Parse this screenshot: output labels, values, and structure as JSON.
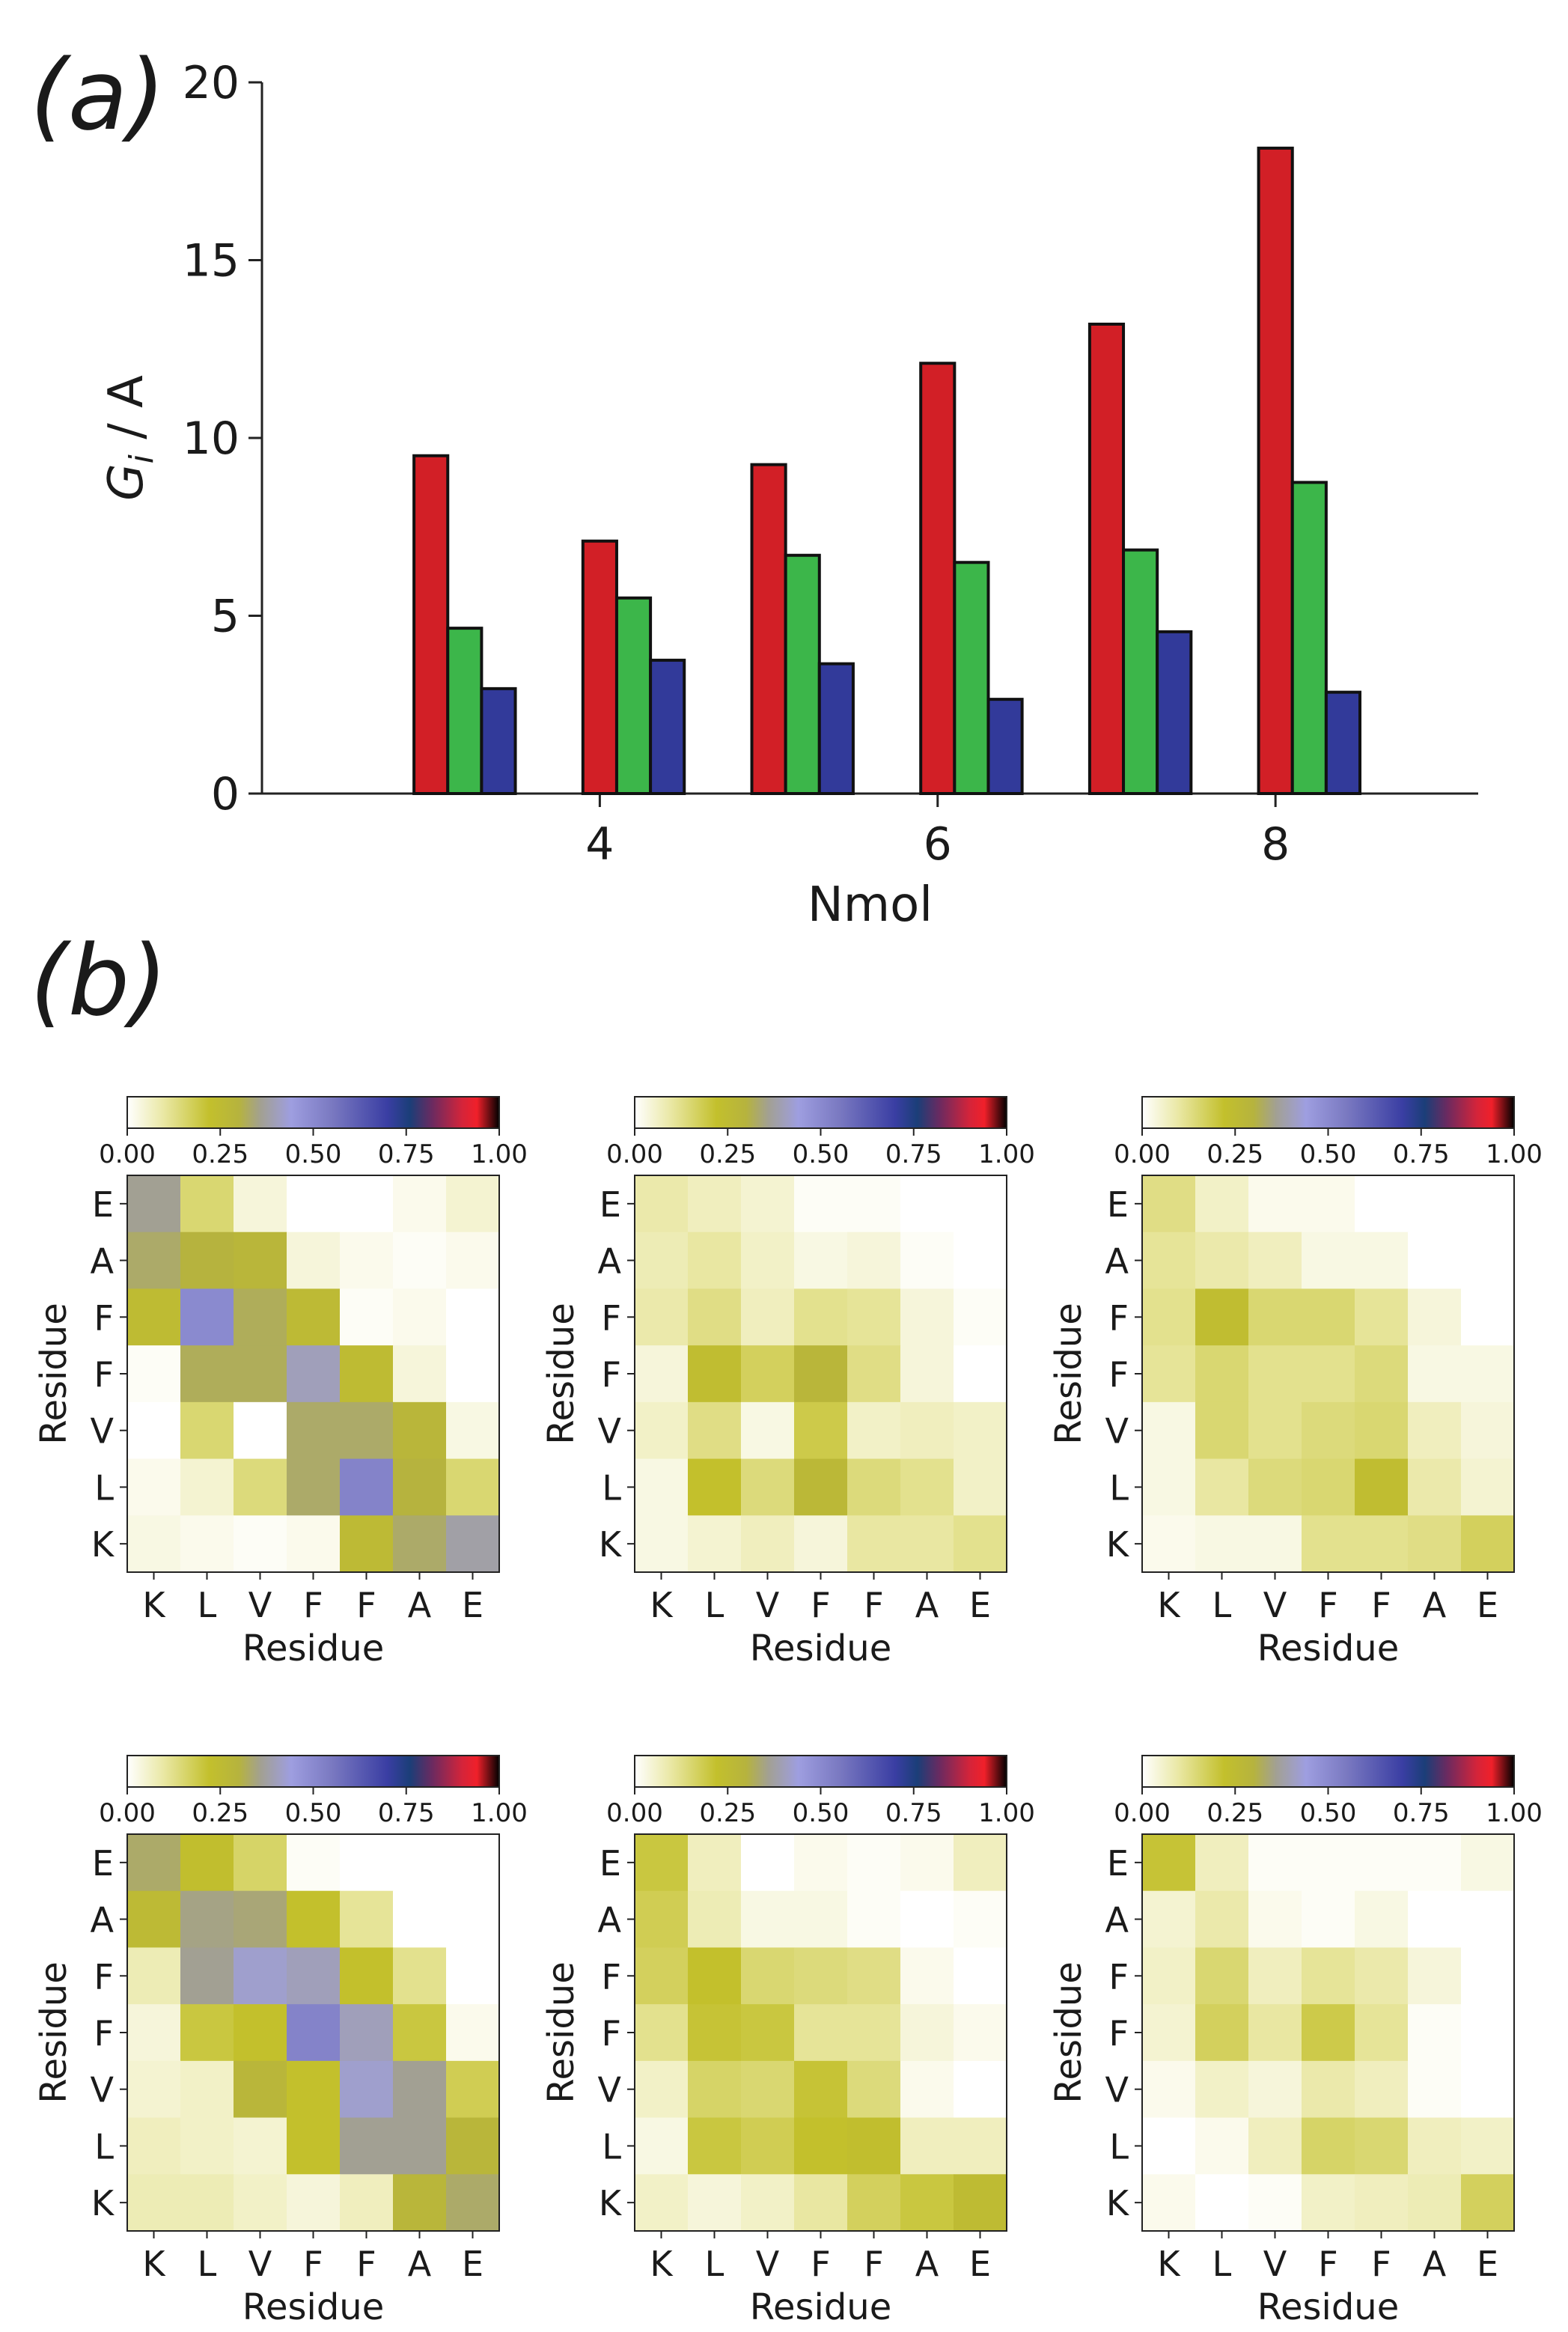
{
  "panels": {
    "a": "(a)",
    "b": "(b)"
  },
  "colors": {
    "series": [
      "#d21f26",
      "#3cb64a",
      "#323a9a"
    ],
    "edge": "#111111"
  },
  "chart_data": [
    {
      "type": "bar",
      "title": "",
      "xlabel": "Nmol",
      "ylabel": "G_i / A",
      "ylabel_parts": {
        "main": "G",
        "sub": "i",
        "rest": " / A"
      },
      "ylim": [
        0,
        20
      ],
      "yticks": [
        0,
        5,
        10,
        15,
        20
      ],
      "xlim": [
        2.0,
        9.2
      ],
      "xticks": [
        4,
        6,
        8
      ],
      "bar_width": 0.2,
      "series": [
        {
          "name": "red",
          "x": [
            3.0,
            4.0,
            5.0,
            6.0,
            7.0,
            8.0
          ],
          "values": [
            9.5,
            7.1,
            9.25,
            12.1,
            13.2,
            18.15
          ]
        },
        {
          "name": "green",
          "x": [
            3.2,
            4.2,
            5.2,
            6.2,
            7.2,
            8.2
          ],
          "values": [
            4.65,
            5.5,
            6.7,
            6.5,
            6.85,
            8.75
          ]
        },
        {
          "name": "blue",
          "x": [
            3.4,
            4.4,
            5.4,
            6.4,
            7.4,
            8.4
          ],
          "values": [
            2.95,
            3.75,
            3.65,
            2.65,
            4.55,
            2.85
          ]
        }
      ]
    },
    {
      "type": "heatmap",
      "title": "",
      "xlabel": "Residue",
      "ylabel": "Residue",
      "x_ticks": [
        "K",
        "L",
        "V",
        "F",
        "F",
        "A",
        "E"
      ],
      "y_ticks_top_to_bottom": [
        "E",
        "A",
        "F",
        "F",
        "V",
        "L",
        "K"
      ],
      "colorbar_ticks": [
        "0.00",
        "0.25",
        "0.50",
        "0.75",
        "1.00"
      ],
      "colorbar_stops": [
        {
          "v": 0.0,
          "c": "#ffffff"
        },
        {
          "v": 0.1,
          "c": "#e9e7a2"
        },
        {
          "v": 0.22,
          "c": "#c3c02c"
        },
        {
          "v": 0.3,
          "c": "#b6b33e"
        },
        {
          "v": 0.36,
          "c": "#a2a093"
        },
        {
          "v": 0.44,
          "c": "#9e9ee0"
        },
        {
          "v": 0.55,
          "c": "#7a79c1"
        },
        {
          "v": 0.7,
          "c": "#3a3ea3"
        },
        {
          "v": 0.76,
          "c": "#1b3e78"
        },
        {
          "v": 0.82,
          "c": "#6b2a60"
        },
        {
          "v": 0.9,
          "c": "#d4243a"
        },
        {
          "v": 0.94,
          "c": "#f0202a"
        },
        {
          "v": 1.0,
          "c": "#000000"
        }
      ],
      "maps": [
        [
          [
            0.36,
            0.15,
            0.04,
            0.0,
            0.0,
            0.02,
            0.05
          ],
          [
            0.33,
            0.3,
            0.28,
            0.04,
            0.02,
            0.01,
            0.02
          ],
          [
            0.25,
            0.5,
            0.32,
            0.26,
            0.01,
            0.02,
            0.0
          ],
          [
            0.01,
            0.32,
            0.32,
            0.4,
            0.25,
            0.04,
            0.0
          ],
          [
            0.0,
            0.15,
            0.0,
            0.33,
            0.33,
            0.28,
            0.03
          ],
          [
            0.02,
            0.05,
            0.14,
            0.33,
            0.52,
            0.3,
            0.15
          ],
          [
            0.03,
            0.02,
            0.01,
            0.02,
            0.26,
            0.33,
            0.38
          ]
        ],
        [
          [
            0.09,
            0.07,
            0.05,
            0.01,
            0.01,
            0.0,
            0.0
          ],
          [
            0.08,
            0.1,
            0.06,
            0.03,
            0.04,
            0.01,
            0.0
          ],
          [
            0.09,
            0.13,
            0.07,
            0.12,
            0.11,
            0.04,
            0.01
          ],
          [
            0.04,
            0.24,
            0.17,
            0.28,
            0.13,
            0.04,
            0.0
          ],
          [
            0.06,
            0.13,
            0.03,
            0.19,
            0.06,
            0.07,
            0.06
          ],
          [
            0.03,
            0.22,
            0.14,
            0.27,
            0.14,
            0.12,
            0.06
          ],
          [
            0.03,
            0.05,
            0.07,
            0.04,
            0.1,
            0.1,
            0.12
          ]
        ],
        [
          [
            0.13,
            0.06,
            0.02,
            0.02,
            0.0,
            0.0,
            0.0
          ],
          [
            0.11,
            0.09,
            0.07,
            0.03,
            0.03,
            0.0,
            0.0
          ],
          [
            0.12,
            0.24,
            0.15,
            0.15,
            0.11,
            0.04,
            0.0
          ],
          [
            0.11,
            0.15,
            0.12,
            0.12,
            0.14,
            0.03,
            0.03
          ],
          [
            0.03,
            0.15,
            0.12,
            0.14,
            0.15,
            0.07,
            0.04
          ],
          [
            0.03,
            0.1,
            0.14,
            0.15,
            0.24,
            0.09,
            0.05
          ],
          [
            0.02,
            0.03,
            0.03,
            0.12,
            0.12,
            0.13,
            0.17
          ]
        ],
        [
          [
            0.33,
            0.23,
            0.16,
            0.01,
            0.0,
            0.0,
            0.0
          ],
          [
            0.26,
            0.35,
            0.34,
            0.22,
            0.11,
            0.0,
            0.0
          ],
          [
            0.08,
            0.36,
            0.42,
            0.4,
            0.22,
            0.12,
            0.0
          ],
          [
            0.04,
            0.2,
            0.22,
            0.52,
            0.4,
            0.2,
            0.02
          ],
          [
            0.05,
            0.06,
            0.28,
            0.22,
            0.42,
            0.36,
            0.18
          ],
          [
            0.07,
            0.06,
            0.05,
            0.22,
            0.36,
            0.36,
            0.28
          ],
          [
            0.08,
            0.08,
            0.06,
            0.04,
            0.07,
            0.28,
            0.33
          ]
        ],
        [
          [
            0.2,
            0.07,
            0.0,
            0.02,
            0.01,
            0.02,
            0.07
          ],
          [
            0.18,
            0.08,
            0.03,
            0.03,
            0.01,
            0.0,
            0.01
          ],
          [
            0.17,
            0.22,
            0.15,
            0.14,
            0.13,
            0.02,
            0.0
          ],
          [
            0.12,
            0.21,
            0.2,
            0.11,
            0.11,
            0.04,
            0.02
          ],
          [
            0.06,
            0.16,
            0.15,
            0.21,
            0.14,
            0.02,
            0.0
          ],
          [
            0.03,
            0.2,
            0.18,
            0.22,
            0.23,
            0.07,
            0.07
          ],
          [
            0.06,
            0.04,
            0.06,
            0.1,
            0.17,
            0.2,
            0.25
          ]
        ],
        [
          [
            0.21,
            0.07,
            0.01,
            0.01,
            0.01,
            0.01,
            0.03
          ],
          [
            0.05,
            0.09,
            0.02,
            0.01,
            0.03,
            0.0,
            0.0
          ],
          [
            0.06,
            0.15,
            0.07,
            0.11,
            0.09,
            0.04,
            0.0
          ],
          [
            0.05,
            0.17,
            0.1,
            0.19,
            0.11,
            0.01,
            0.0
          ],
          [
            0.02,
            0.06,
            0.04,
            0.09,
            0.07,
            0.01,
            0.0
          ],
          [
            0.0,
            0.02,
            0.07,
            0.16,
            0.15,
            0.07,
            0.06
          ],
          [
            0.02,
            0.0,
            0.01,
            0.06,
            0.07,
            0.08,
            0.17
          ]
        ]
      ]
    }
  ]
}
